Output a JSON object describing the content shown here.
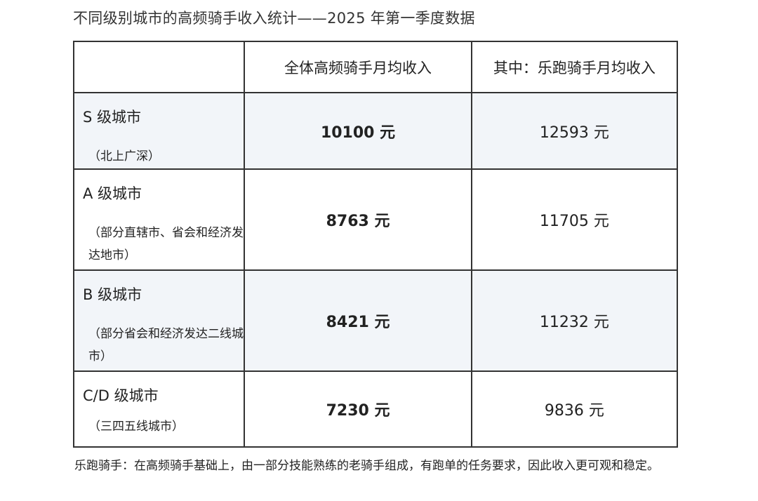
{
  "title": "不同级别城市的高频骑手收入统计——2025 年第一季度数据",
  "table": {
    "headers": [
      "",
      "全体高频骑手月均收入",
      "其中：乐跑骑手月均收入"
    ],
    "rows": [
      {
        "city": "S 级城市",
        "note": "（北上广深）",
        "all": "10100 元",
        "lepao": "12593 元"
      },
      {
        "city": "A 级城市",
        "note": "（部分直辖市、省会和经济发达地市）",
        "all": "8763 元",
        "lepao": "11705 元"
      },
      {
        "city": "B 级城市",
        "note": "（部分省会和经济发达二线城市）",
        "all": "8421 元",
        "lepao": "11232 元"
      },
      {
        "city": "C/D 级城市",
        "note": "（三四五线城市）",
        "all": "7230 元",
        "lepao": "9836 元"
      }
    ]
  },
  "footnote": "乐跑骑手：在高频骑手基础上，由一部分技能熟练的老骑手组成，有跑单的任务要求，因此收入更可观和稳定。"
}
